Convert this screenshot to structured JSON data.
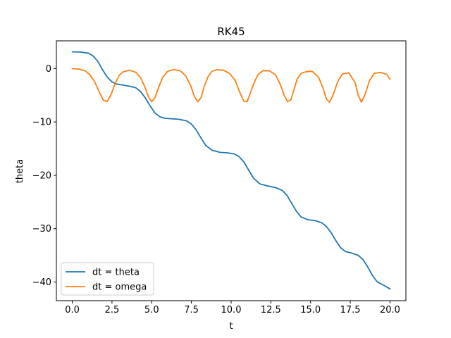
{
  "chart_data": {
    "type": "line",
    "title": "RK45",
    "xlabel": "t",
    "ylabel": "theta",
    "xlim": [
      -1.0,
      21.0
    ],
    "ylim": [
      -43.5,
      5.2
    ],
    "grid": false,
    "legend_position": "lower-left",
    "x_ticks": [
      0.0,
      2.5,
      5.0,
      7.5,
      10.0,
      12.5,
      15.0,
      17.5,
      20.0
    ],
    "x_tick_labels": [
      "0.0",
      "2.5",
      "5.0",
      "7.5",
      "10.0",
      "12.5",
      "15.0",
      "17.5",
      "20.0"
    ],
    "y_ticks": [
      0,
      -10,
      -20,
      -30,
      -40
    ],
    "y_tick_labels": [
      "0",
      "−10",
      "−20",
      "−30",
      "−40"
    ],
    "series": [
      {
        "name": "dt = theta",
        "color": "#1f77b4",
        "x": [
          0.0,
          0.5,
          1.0,
          1.3,
          1.6,
          1.9,
          2.2,
          2.5,
          2.8,
          3.2,
          3.6,
          4.0,
          4.3,
          4.6,
          4.9,
          5.2,
          5.5,
          5.8,
          6.2,
          6.7,
          7.2,
          7.5,
          7.8,
          8.1,
          8.4,
          8.8,
          9.3,
          9.8,
          10.2,
          10.5,
          10.8,
          11.1,
          11.4,
          11.8,
          12.3,
          12.8,
          13.2,
          13.5,
          13.8,
          14.1,
          14.4,
          14.8,
          15.3,
          15.7,
          16.0,
          16.3,
          16.6,
          16.9,
          17.2,
          17.6,
          18.0,
          18.3,
          18.6,
          18.9,
          19.2,
          19.6,
          20.0
        ],
        "values": [
          3.14,
          3.1,
          2.9,
          2.4,
          1.4,
          -0.2,
          -1.6,
          -2.5,
          -2.9,
          -3.1,
          -3.3,
          -3.6,
          -4.3,
          -5.5,
          -7.0,
          -8.3,
          -9.0,
          -9.3,
          -9.4,
          -9.5,
          -9.8,
          -10.4,
          -11.5,
          -13.0,
          -14.4,
          -15.3,
          -15.7,
          -15.8,
          -16.0,
          -16.5,
          -17.5,
          -19.0,
          -20.5,
          -21.6,
          -22.0,
          -22.3,
          -22.8,
          -23.7,
          -25.2,
          -26.7,
          -27.8,
          -28.3,
          -28.5,
          -28.9,
          -29.6,
          -30.8,
          -32.3,
          -33.6,
          -34.3,
          -34.6,
          -35.0,
          -35.8,
          -37.2,
          -38.8,
          -40.0,
          -40.6,
          -41.3
        ]
      },
      {
        "name": "dt = omega",
        "color": "#ff7f0e",
        "x": [
          0.0,
          0.4,
          0.8,
          1.1,
          1.4,
          1.7,
          1.95,
          2.2,
          2.45,
          2.7,
          2.95,
          3.2,
          3.6,
          4.0,
          4.3,
          4.55,
          4.8,
          5.0,
          5.2,
          5.45,
          5.7,
          6.0,
          6.4,
          6.8,
          7.15,
          7.45,
          7.7,
          7.9,
          8.1,
          8.3,
          8.55,
          8.8,
          9.1,
          9.5,
          9.9,
          10.25,
          10.55,
          10.8,
          11.0,
          11.2,
          11.45,
          11.7,
          12.0,
          12.4,
          12.8,
          13.1,
          13.35,
          13.55,
          13.75,
          13.95,
          14.15,
          14.4,
          14.7,
          15.1,
          15.5,
          15.8,
          16.0,
          16.2,
          16.45,
          16.7,
          17.0,
          17.4,
          17.8,
          18.0,
          18.2,
          18.45,
          18.7,
          19.0,
          19.4,
          19.8,
          20.0
        ],
        "values": [
          0.0,
          -0.1,
          -0.4,
          -1.1,
          -2.4,
          -4.4,
          -5.9,
          -6.2,
          -4.8,
          -2.8,
          -1.3,
          -0.6,
          -0.3,
          -0.7,
          -1.7,
          -3.3,
          -5.3,
          -6.2,
          -5.5,
          -3.4,
          -1.6,
          -0.5,
          -0.2,
          -0.4,
          -1.4,
          -3.2,
          -5.3,
          -6.2,
          -5.5,
          -3.4,
          -1.5,
          -0.5,
          -0.2,
          -0.3,
          -0.9,
          -2.2,
          -4.5,
          -6.1,
          -6.2,
          -4.7,
          -2.6,
          -1.1,
          -0.4,
          -0.4,
          -1.2,
          -3.0,
          -5.1,
          -6.2,
          -5.9,
          -4.0,
          -2.0,
          -0.9,
          -0.6,
          -0.5,
          -1.6,
          -3.8,
          -5.7,
          -6.3,
          -4.7,
          -2.5,
          -1.0,
          -0.8,
          -2.6,
          -5.0,
          -6.3,
          -4.7,
          -2.3,
          -0.9,
          -0.7,
          -1.1,
          -2.0
        ]
      }
    ]
  }
}
